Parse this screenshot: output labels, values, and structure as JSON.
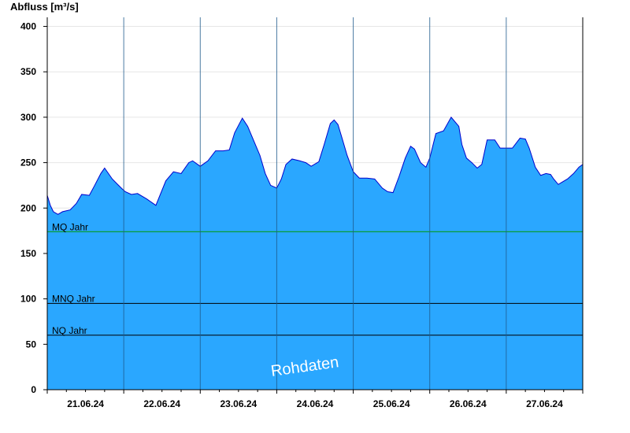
{
  "chart_data": {
    "type": "area",
    "ylabel": "Abfluss [m³/s]",
    "watermark": "Rohdaten",
    "ylim": [
      0,
      410
    ],
    "yticks": [
      0,
      50,
      100,
      150,
      200,
      250,
      300,
      350,
      400
    ],
    "xlim": [
      0,
      7
    ],
    "xtick_labels": [
      "21.06.24",
      "22.06.24",
      "23.06.24",
      "24.06.24",
      "25.06.24",
      "26.06.24",
      "27.06.24"
    ],
    "fill_color": "#2aa7ff",
    "line_color": "#0000cc",
    "reference_lines": [
      {
        "label": "MQ Jahr",
        "value": 174,
        "color": "#009900"
      },
      {
        "label": "MNQ Jahr",
        "value": 95,
        "color": "#000000"
      },
      {
        "label": "NQ Jahr",
        "value": 60,
        "color": "#000000"
      }
    ],
    "series": [
      {
        "x": [
          0.0,
          0.04,
          0.08,
          0.14,
          0.2,
          0.3,
          0.38,
          0.45,
          0.55,
          0.62,
          0.7,
          0.75,
          0.85,
          0.92,
          0.98,
          1.02,
          1.1,
          1.18,
          1.3,
          1.42,
          1.55,
          1.65,
          1.75,
          1.85,
          1.9,
          2.0,
          2.1,
          2.2,
          2.3,
          2.38,
          2.45,
          2.55,
          2.62,
          2.72,
          2.78,
          2.85,
          2.92,
          3.0,
          3.06,
          3.12,
          3.2,
          3.3,
          3.38,
          3.45,
          3.55,
          3.62,
          3.7,
          3.75,
          3.8,
          3.85,
          3.92,
          4.0,
          4.08,
          4.18,
          4.28,
          4.38,
          4.45,
          4.52,
          4.6,
          4.68,
          4.75,
          4.8,
          4.88,
          4.95,
          5.0,
          5.08,
          5.18,
          5.28,
          5.38,
          5.42,
          5.48,
          5.55,
          5.62,
          5.68,
          5.75,
          5.85,
          5.92,
          6.0,
          6.08,
          6.18,
          6.25,
          6.3,
          6.38,
          6.45,
          6.52,
          6.58,
          6.62,
          6.68,
          6.72,
          6.8,
          6.88,
          6.95,
          7.0
        ],
        "values": [
          214,
          203,
          196,
          193,
          196,
          198,
          205,
          215,
          214,
          225,
          238,
          244,
          232,
          226,
          221,
          218,
          215,
          216,
          210,
          203,
          230,
          240,
          238,
          250,
          252,
          246,
          252,
          263,
          263,
          264,
          283,
          299,
          290,
          270,
          258,
          238,
          225,
          222,
          232,
          248,
          254,
          252,
          250,
          246,
          251,
          270,
          293,
          297,
          292,
          278,
          258,
          240,
          233,
          233,
          232,
          222,
          218,
          217,
          235,
          255,
          268,
          265,
          250,
          245,
          255,
          282,
          285,
          300,
          290,
          270,
          255,
          250,
          244,
          248,
          275,
          275,
          266,
          266,
          266,
          277,
          276,
          266,
          245,
          236,
          238,
          237,
          232,
          226,
          228,
          232,
          238,
          245,
          248
        ]
      }
    ]
  }
}
